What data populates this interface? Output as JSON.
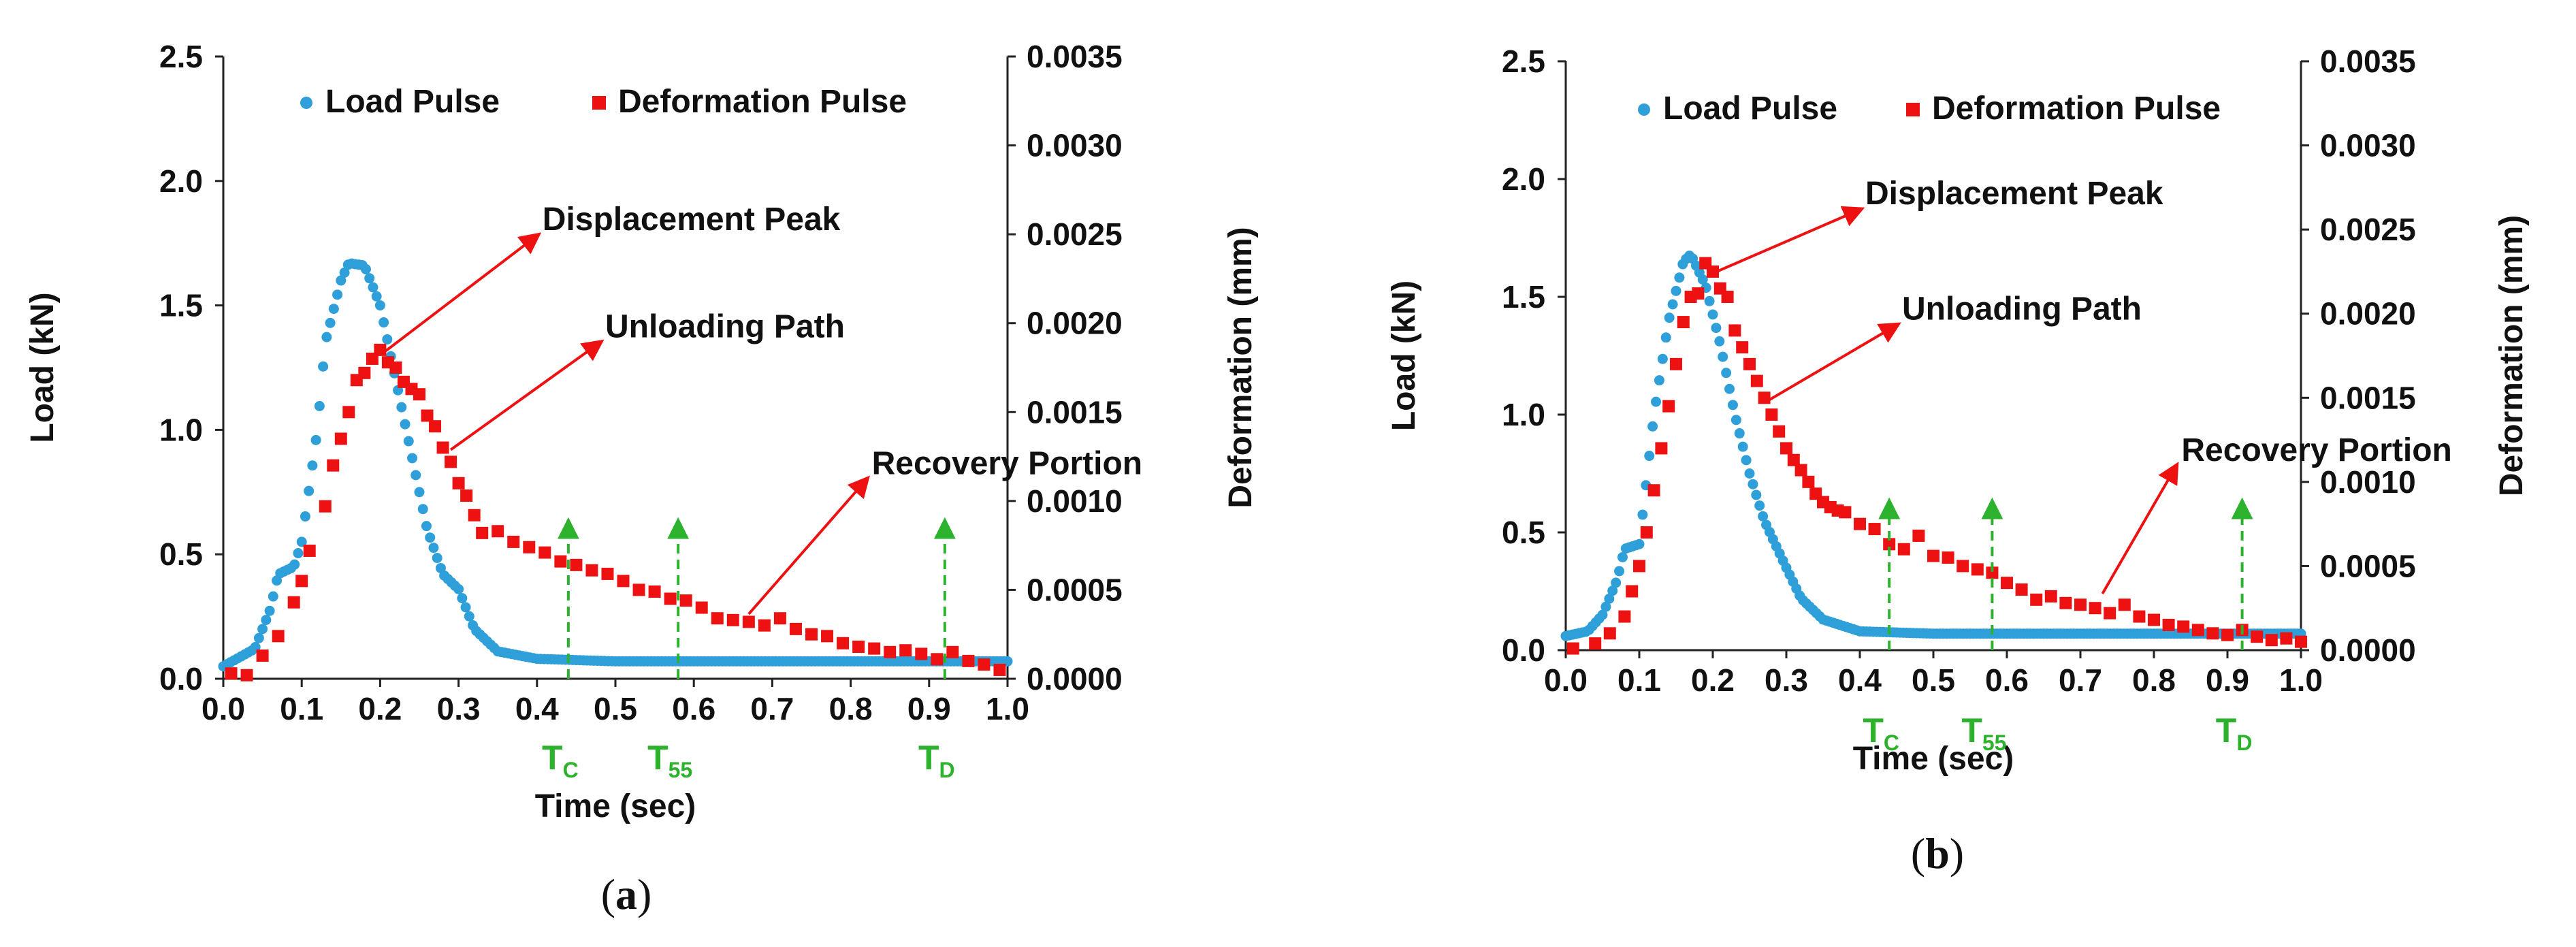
{
  "chart_data": [
    {
      "type": "scatter",
      "caption": "a",
      "xlabel": "Time (sec)",
      "ylabel_left": "Load (kN)",
      "ylabel_right": "Deformation (mm)",
      "xlim": [
        0.0,
        1.0
      ],
      "ylim_left": [
        0.0,
        2.5
      ],
      "ylim_right": [
        0.0,
        0.0035
      ],
      "x_ticks": [
        "0.0",
        "0.1",
        "0.2",
        "0.3",
        "0.4",
        "0.5",
        "0.6",
        "0.7",
        "0.8",
        "0.9",
        "1.0"
      ],
      "y_left_ticks": [
        "0.0",
        "0.5",
        "1.0",
        "1.5",
        "2.0",
        "2.5"
      ],
      "y_right_ticks": [
        "0.0000",
        "0.0005",
        "0.0010",
        "0.0015",
        "0.0020",
        "0.0025",
        "0.0030",
        "0.0035"
      ],
      "legend": [
        {
          "label": "Load Pulse",
          "color": "#2e9fd8",
          "marker": "circle"
        },
        {
          "label": "Deformation Pulse",
          "color": "#ee1111",
          "marker": "square"
        }
      ],
      "load_keypoints": [
        [
          0.0,
          0.05
        ],
        [
          0.04,
          0.12
        ],
        [
          0.06,
          0.28
        ],
        [
          0.07,
          0.42
        ],
        [
          0.09,
          0.45
        ],
        [
          0.1,
          0.55
        ],
        [
          0.12,
          1.0
        ],
        [
          0.13,
          1.35
        ],
        [
          0.15,
          1.6
        ],
        [
          0.16,
          1.67
        ],
        [
          0.18,
          1.66
        ],
        [
          0.2,
          1.5
        ],
        [
          0.22,
          1.2
        ],
        [
          0.24,
          0.9
        ],
        [
          0.26,
          0.6
        ],
        [
          0.28,
          0.42
        ],
        [
          0.3,
          0.36
        ],
        [
          0.32,
          0.2
        ],
        [
          0.35,
          0.11
        ],
        [
          0.4,
          0.08
        ],
        [
          0.5,
          0.07
        ],
        [
          0.7,
          0.07
        ],
        [
          0.9,
          0.07
        ],
        [
          1.0,
          0.07
        ]
      ],
      "deformation_points": [
        [
          0.01,
          3e-05
        ],
        [
          0.03,
          2e-05
        ],
        [
          0.05,
          0.00013
        ],
        [
          0.07,
          0.00024
        ],
        [
          0.09,
          0.00043
        ],
        [
          0.1,
          0.00055
        ],
        [
          0.11,
          0.00072
        ],
        [
          0.13,
          0.00097
        ],
        [
          0.14,
          0.0012
        ],
        [
          0.15,
          0.00135
        ],
        [
          0.16,
          0.0015
        ],
        [
          0.17,
          0.00168
        ],
        [
          0.18,
          0.00172
        ],
        [
          0.19,
          0.0018
        ],
        [
          0.2,
          0.00185
        ],
        [
          0.21,
          0.00178
        ],
        [
          0.22,
          0.00175
        ],
        [
          0.23,
          0.00167
        ],
        [
          0.24,
          0.00163
        ],
        [
          0.25,
          0.0016
        ],
        [
          0.26,
          0.00148
        ],
        [
          0.27,
          0.00142
        ],
        [
          0.28,
          0.0013
        ],
        [
          0.29,
          0.00122
        ],
        [
          0.3,
          0.0011
        ],
        [
          0.31,
          0.00103
        ],
        [
          0.32,
          0.00092
        ],
        [
          0.33,
          0.00082
        ],
        [
          0.35,
          0.00083
        ],
        [
          0.37,
          0.00077
        ],
        [
          0.39,
          0.00074
        ],
        [
          0.41,
          0.00071
        ],
        [
          0.43,
          0.00066
        ],
        [
          0.45,
          0.00064
        ],
        [
          0.47,
          0.00061
        ],
        [
          0.49,
          0.00059
        ],
        [
          0.51,
          0.00055
        ],
        [
          0.53,
          0.0005
        ],
        [
          0.55,
          0.00049
        ],
        [
          0.57,
          0.00045
        ],
        [
          0.59,
          0.00044
        ],
        [
          0.61,
          0.0004
        ],
        [
          0.63,
          0.00034
        ],
        [
          0.65,
          0.00033
        ],
        [
          0.67,
          0.00032
        ],
        [
          0.69,
          0.0003
        ],
        [
          0.71,
          0.00034
        ],
        [
          0.73,
          0.00028
        ],
        [
          0.75,
          0.00025
        ],
        [
          0.77,
          0.00024
        ],
        [
          0.79,
          0.0002
        ],
        [
          0.81,
          0.00018
        ],
        [
          0.83,
          0.00017
        ],
        [
          0.85,
          0.00015
        ],
        [
          0.87,
          0.00016
        ],
        [
          0.89,
          0.00014
        ],
        [
          0.91,
          0.00011
        ],
        [
          0.93,
          0.00015
        ],
        [
          0.95,
          0.0001
        ],
        [
          0.97,
          8e-05
        ],
        [
          0.99,
          5e-05
        ]
      ],
      "markers": [
        {
          "label": "T",
          "sub": "C",
          "x": 0.44,
          "y_top": 0.66
        },
        {
          "label": "T",
          "sub": "55",
          "x": 0.58,
          "y_top": 0.66
        },
        {
          "label": "T",
          "sub": "D",
          "x": 0.92,
          "y_top": 0.66
        }
      ],
      "annotations": [
        {
          "text": "Displacement Peak",
          "from": [
            0.2,
            1.3
          ],
          "to": [
            0.4,
            1.78
          ]
        },
        {
          "text": "Unloading Path",
          "from": [
            0.29,
            0.92
          ],
          "to": [
            0.48,
            1.35
          ]
        },
        {
          "text": "Recovery Portion",
          "from": [
            0.67,
            0.26
          ],
          "to": [
            0.82,
            0.8
          ]
        }
      ]
    },
    {
      "type": "scatter",
      "caption": "b",
      "xlabel": "Time (sec)",
      "ylabel_left": "Load (kN)",
      "ylabel_right": "Deformation (mm)",
      "xlim": [
        0.0,
        1.0
      ],
      "ylim_left": [
        0.0,
        2.5
      ],
      "ylim_right": [
        0.0,
        0.0035
      ],
      "x_ticks": [
        "0.0",
        "0.1",
        "0.2",
        "0.3",
        "0.4",
        "0.5",
        "0.6",
        "0.7",
        "0.8",
        "0.9",
        "1.0"
      ],
      "y_left_ticks": [
        "0.0",
        "0.5",
        "1.0",
        "1.5",
        "2.0",
        "2.5"
      ],
      "y_right_ticks": [
        "0.0000",
        "0.0005",
        "0.0010",
        "0.0015",
        "0.0020",
        "0.0025",
        "0.0030",
        "0.0035"
      ],
      "legend": [
        {
          "label": "Load Pulse",
          "color": "#2e9fd8",
          "marker": "circle"
        },
        {
          "label": "Deformation Pulse",
          "color": "#ee1111",
          "marker": "square"
        }
      ],
      "load_keypoints": [
        [
          0.0,
          0.06
        ],
        [
          0.03,
          0.08
        ],
        [
          0.05,
          0.15
        ],
        [
          0.07,
          0.3
        ],
        [
          0.08,
          0.43
        ],
        [
          0.1,
          0.45
        ],
        [
          0.12,
          1.0
        ],
        [
          0.14,
          1.4
        ],
        [
          0.16,
          1.65
        ],
        [
          0.17,
          1.68
        ],
        [
          0.19,
          1.55
        ],
        [
          0.21,
          1.3
        ],
        [
          0.23,
          1.0
        ],
        [
          0.25,
          0.75
        ],
        [
          0.27,
          0.55
        ],
        [
          0.3,
          0.35
        ],
        [
          0.32,
          0.22
        ],
        [
          0.35,
          0.13
        ],
        [
          0.4,
          0.08
        ],
        [
          0.5,
          0.07
        ],
        [
          0.7,
          0.07
        ],
        [
          0.9,
          0.07
        ],
        [
          1.0,
          0.07
        ]
      ],
      "deformation_points": [
        [
          0.01,
          1e-05
        ],
        [
          0.04,
          4e-05
        ],
        [
          0.06,
          0.0001
        ],
        [
          0.08,
          0.0002
        ],
        [
          0.09,
          0.00035
        ],
        [
          0.1,
          0.0005
        ],
        [
          0.11,
          0.0007
        ],
        [
          0.12,
          0.00095
        ],
        [
          0.13,
          0.0012
        ],
        [
          0.14,
          0.00145
        ],
        [
          0.15,
          0.0017
        ],
        [
          0.16,
          0.00195
        ],
        [
          0.17,
          0.0021
        ],
        [
          0.18,
          0.00212
        ],
        [
          0.19,
          0.0023
        ],
        [
          0.2,
          0.00225
        ],
        [
          0.21,
          0.00215
        ],
        [
          0.22,
          0.0021
        ],
        [
          0.23,
          0.0019
        ],
        [
          0.24,
          0.0018
        ],
        [
          0.25,
          0.0017
        ],
        [
          0.26,
          0.0016
        ],
        [
          0.27,
          0.0015
        ],
        [
          0.28,
          0.0014
        ],
        [
          0.29,
          0.0013
        ],
        [
          0.3,
          0.0012
        ],
        [
          0.31,
          0.00113
        ],
        [
          0.32,
          0.00107
        ],
        [
          0.33,
          0.001
        ],
        [
          0.34,
          0.00093
        ],
        [
          0.35,
          0.00088
        ],
        [
          0.36,
          0.00085
        ],
        [
          0.37,
          0.00083
        ],
        [
          0.38,
          0.00082
        ],
        [
          0.4,
          0.00075
        ],
        [
          0.42,
          0.00072
        ],
        [
          0.44,
          0.00063
        ],
        [
          0.46,
          0.0006
        ],
        [
          0.48,
          0.00068
        ],
        [
          0.5,
          0.00056
        ],
        [
          0.52,
          0.00055
        ],
        [
          0.54,
          0.0005
        ],
        [
          0.56,
          0.00048
        ],
        [
          0.58,
          0.00046
        ],
        [
          0.6,
          0.0004
        ],
        [
          0.62,
          0.00036
        ],
        [
          0.64,
          0.0003
        ],
        [
          0.66,
          0.00032
        ],
        [
          0.68,
          0.00028
        ],
        [
          0.7,
          0.00027
        ],
        [
          0.72,
          0.00025
        ],
        [
          0.74,
          0.00022
        ],
        [
          0.76,
          0.00027
        ],
        [
          0.78,
          0.0002
        ],
        [
          0.8,
          0.00018
        ],
        [
          0.82,
          0.00015
        ],
        [
          0.84,
          0.00014
        ],
        [
          0.86,
          0.00012
        ],
        [
          0.88,
          0.0001
        ],
        [
          0.9,
          9e-05
        ],
        [
          0.92,
          0.00012
        ],
        [
          0.94,
          8e-05
        ],
        [
          0.96,
          6e-05
        ],
        [
          0.98,
          7e-05
        ],
        [
          1.0,
          5e-05
        ]
      ],
      "markers": [
        {
          "label": "T",
          "sub": "C",
          "x": 0.44,
          "y_top": 0.66
        },
        {
          "label": "T",
          "sub": "55",
          "x": 0.58,
          "y_top": 0.66
        },
        {
          "label": "T",
          "sub": "D",
          "x": 0.92,
          "y_top": 0.66
        }
      ],
      "annotations": [
        {
          "text": "Displacement Peak",
          "from": [
            0.2,
            1.6
          ],
          "to": [
            0.4,
            1.87
          ]
        },
        {
          "text": "Unloading Path",
          "from": [
            0.27,
            1.05
          ],
          "to": [
            0.45,
            1.38
          ]
        },
        {
          "text": "Recovery Portion",
          "from": [
            0.73,
            0.24
          ],
          "to": [
            0.83,
            0.78
          ]
        }
      ]
    }
  ]
}
